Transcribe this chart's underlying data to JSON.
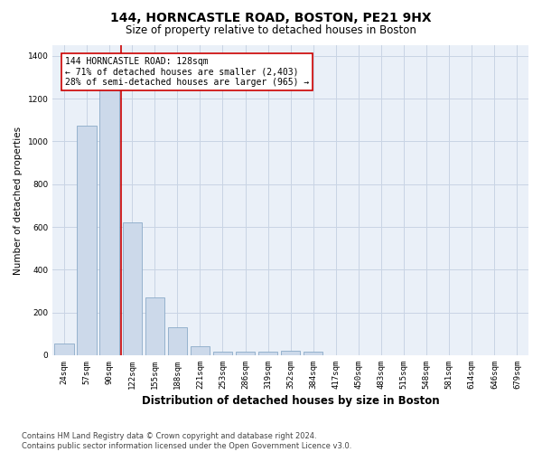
{
  "title": "144, HORNCASTLE ROAD, BOSTON, PE21 9HX",
  "subtitle": "Size of property relative to detached houses in Boston",
  "xlabel": "Distribution of detached houses by size in Boston",
  "ylabel": "Number of detached properties",
  "categories": [
    "24sqm",
    "57sqm",
    "90sqm",
    "122sqm",
    "155sqm",
    "188sqm",
    "221sqm",
    "253sqm",
    "286sqm",
    "319sqm",
    "352sqm",
    "384sqm",
    "417sqm",
    "450sqm",
    "483sqm",
    "515sqm",
    "548sqm",
    "581sqm",
    "614sqm",
    "646sqm",
    "679sqm"
  ],
  "values": [
    55,
    1075,
    1310,
    620,
    270,
    130,
    40,
    18,
    18,
    18,
    22,
    15,
    0,
    0,
    0,
    0,
    0,
    0,
    0,
    0,
    0
  ],
  "bar_color": "#ccd9ea",
  "bar_edge_color": "#8aaac8",
  "grid_color": "#c8d4e4",
  "bg_color": "#eaf0f8",
  "vline_x": 2.5,
  "vline_color": "#cc0000",
  "annotation_line1": "144 HORNCASTLE ROAD: 128sqm",
  "annotation_line2": "← 71% of detached houses are smaller (2,403)",
  "annotation_line3": "28% of semi-detached houses are larger (965) →",
  "annotation_box_color": "#ffffff",
  "annotation_box_edge_color": "#cc0000",
  "footnote": "Contains HM Land Registry data © Crown copyright and database right 2024.\nContains public sector information licensed under the Open Government Licence v3.0.",
  "ylim_max": 1450,
  "title_fontsize": 10,
  "subtitle_fontsize": 8.5,
  "xlabel_fontsize": 8.5,
  "ylabel_fontsize": 7.5,
  "tick_fontsize": 6.5,
  "annotation_fontsize": 7,
  "footnote_fontsize": 6
}
